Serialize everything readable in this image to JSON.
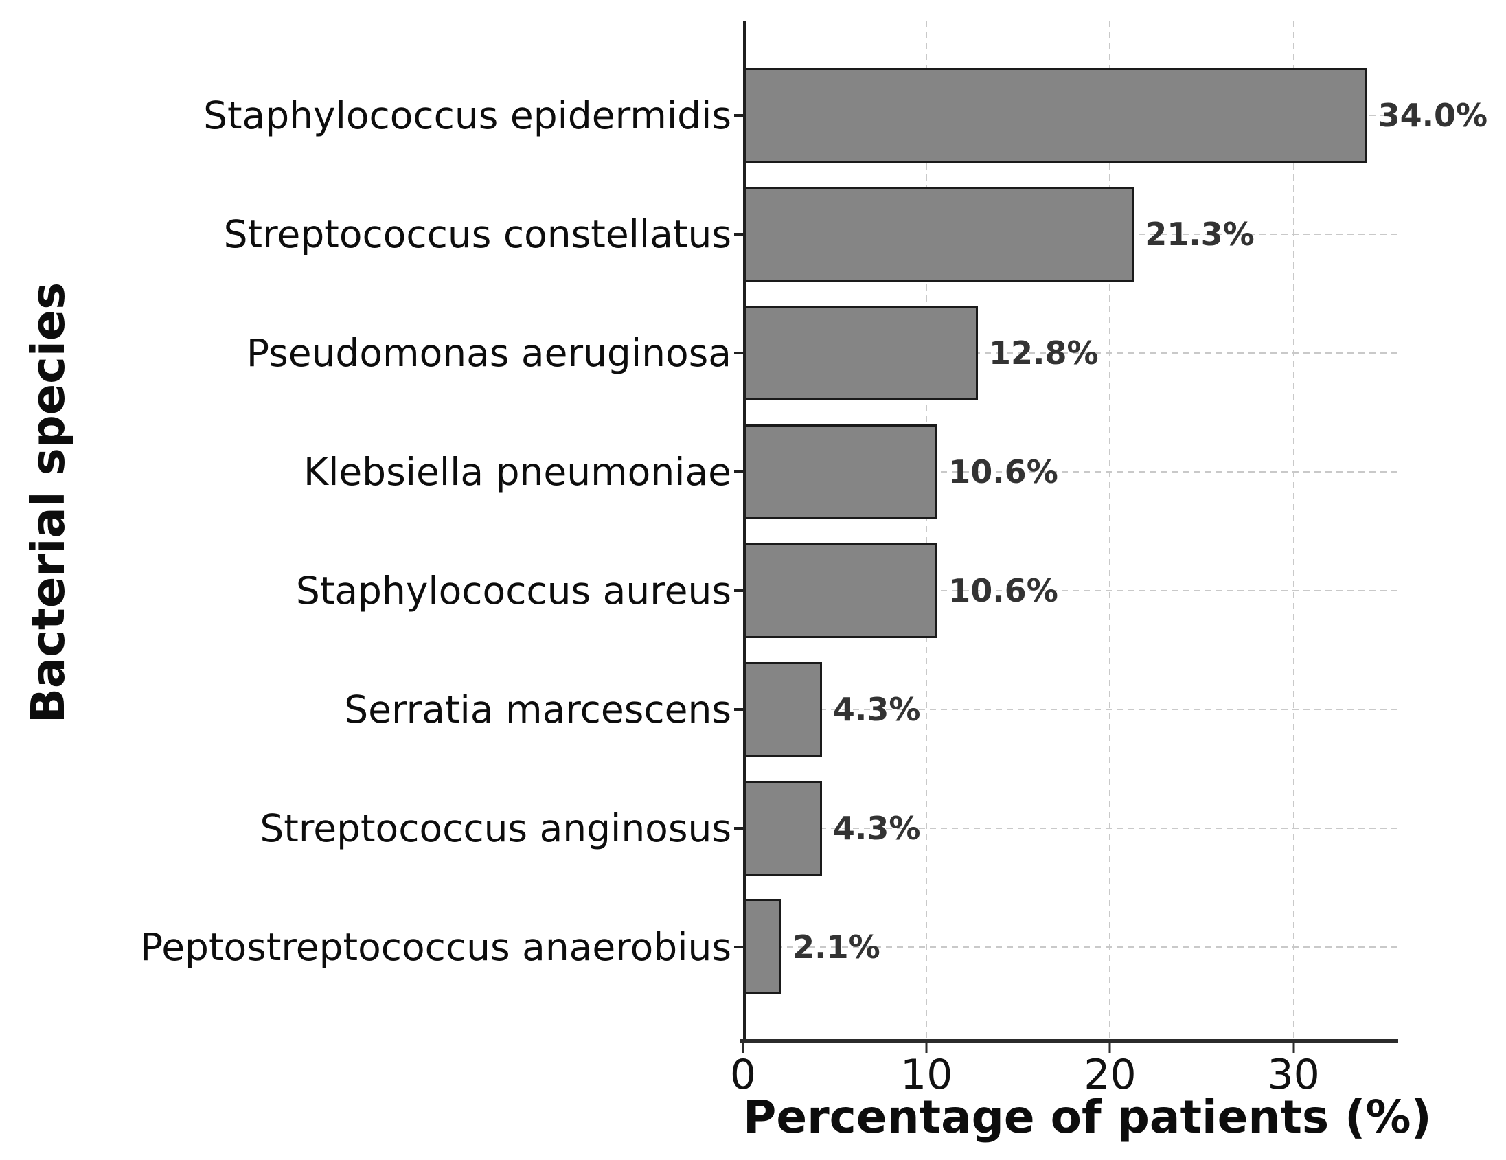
{
  "chart_data": {
    "type": "bar",
    "orientation": "horizontal",
    "xlabel": "Percentage of patients (%)",
    "ylabel": "Bacterial species",
    "categories": [
      "Staphylococcus epidermidis",
      "Streptococcus constellatus",
      "Pseudomonas aeruginosa",
      "Klebsiella pneumoniae",
      "Staphylococcus aureus",
      "Serratia marcescens",
      "Streptococcus anginosus",
      "Peptostreptococcus anaerobius"
    ],
    "values": [
      34.0,
      21.3,
      12.8,
      10.6,
      10.6,
      4.3,
      4.3,
      2.1
    ],
    "value_labels": [
      "34.0%",
      "21.3%",
      "12.8%",
      "10.6%",
      "10.6%",
      "4.3%",
      "4.3%",
      "2.1%"
    ],
    "x_ticks": [
      0,
      10,
      20,
      30
    ],
    "x_tick_labels": [
      "0",
      "10",
      "20",
      "30"
    ],
    "xlim": [
      0,
      35.7
    ],
    "grid": "dashed",
    "legend": "none",
    "colors": {
      "bar_fill": "#858585",
      "bar_edge": "#1a1a1a",
      "grid": "#c9c9c9",
      "axis": "#2b2b2b",
      "value_label": "#333333",
      "text": "#0d0d0d"
    }
  }
}
